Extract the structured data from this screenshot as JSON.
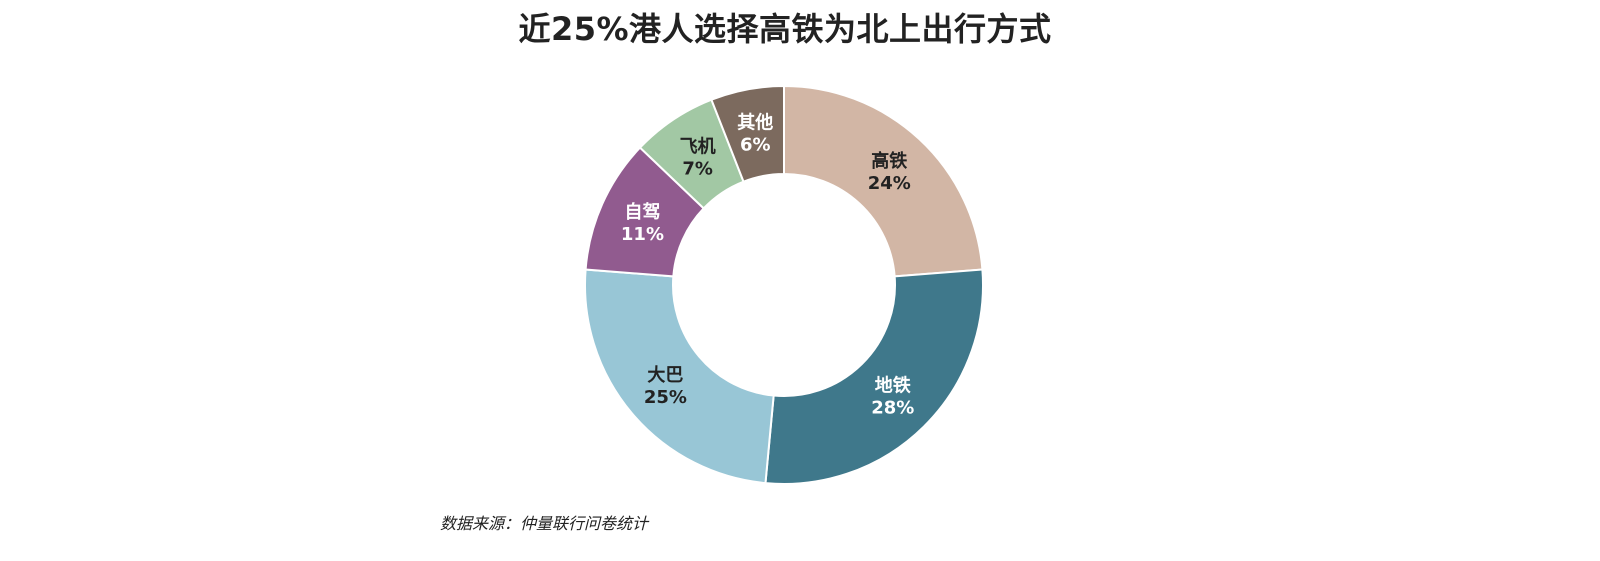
{
  "chart_data": {
    "type": "pie",
    "variant": "donut",
    "title": "近25%港人选择高铁为北上出行方式",
    "slices": [
      {
        "label": "高铁",
        "value": 24,
        "value_label": "24%",
        "color": "#d2b6a5",
        "text_color": "#222222"
      },
      {
        "label": "地铁",
        "value": 28,
        "value_label": "28%",
        "color": "#3f788b",
        "text_color": "#ffffff"
      },
      {
        "label": "大巴",
        "value": 25,
        "value_label": "25%",
        "color": "#98c6d6",
        "text_color": "#222222"
      },
      {
        "label": "自驾",
        "value": 11,
        "value_label": "11%",
        "color": "#915b8f",
        "text_color": "#ffffff"
      },
      {
        "label": "飞机",
        "value": 7,
        "value_label": "7%",
        "color": "#a2c8a4",
        "text_color": "#222222"
      },
      {
        "label": "其他",
        "value": 6,
        "value_label": "6%",
        "color": "#7c6a5e",
        "text_color": "#ffffff"
      }
    ],
    "start": "12 o'clock",
    "direction": "clockwise",
    "legend": "none"
  },
  "source": "数据来源：仲量联行问卷统计"
}
